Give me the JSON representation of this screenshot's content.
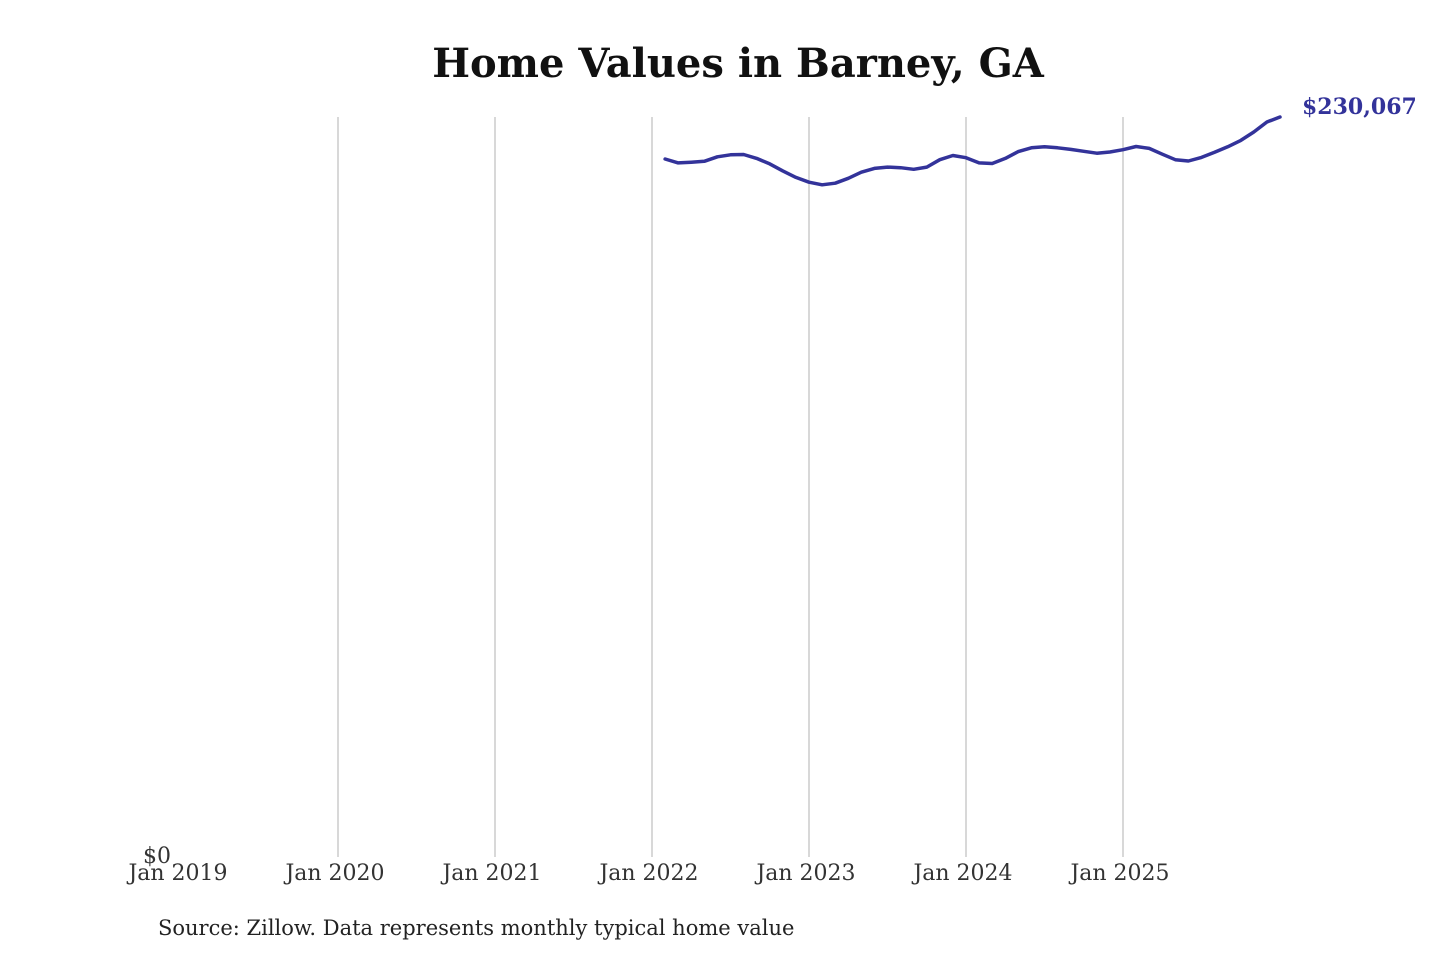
{
  "chart_data": {
    "type": "line",
    "title": "Home Values in Barney, GA",
    "xlabel": "",
    "ylabel": "",
    "x_ticks": [
      "Jan 2019",
      "Jan 2020",
      "Jan 2021",
      "Jan 2022",
      "Jan 2023",
      "Jan 2024",
      "Jan 2025"
    ],
    "y_ticks": [
      "$0"
    ],
    "xlim": [
      "2019-01",
      "2025-12"
    ],
    "ylim": [
      0,
      230067
    ],
    "grid": "vertical",
    "legend": "none",
    "series": [
      {
        "color": "#33339a",
        "points": [
          [
            "2022-02",
            217000
          ],
          [
            "2022-03",
            215800
          ],
          [
            "2022-04",
            216000
          ],
          [
            "2022-05",
            216300
          ],
          [
            "2022-06",
            217700
          ],
          [
            "2022-07",
            218300
          ],
          [
            "2022-08",
            218400
          ],
          [
            "2022-09",
            217200
          ],
          [
            "2022-10",
            215500
          ],
          [
            "2022-11",
            213300
          ],
          [
            "2022-12",
            211300
          ],
          [
            "2023-01",
            209800
          ],
          [
            "2023-02",
            209000
          ],
          [
            "2023-03",
            209500
          ],
          [
            "2023-04",
            211000
          ],
          [
            "2023-05",
            212900
          ],
          [
            "2023-06",
            214100
          ],
          [
            "2023-07",
            214500
          ],
          [
            "2023-08",
            214300
          ],
          [
            "2023-09",
            213800
          ],
          [
            "2023-10",
            214500
          ],
          [
            "2023-11",
            216800
          ],
          [
            "2023-12",
            218100
          ],
          [
            "2024-01",
            217400
          ],
          [
            "2024-02",
            215800
          ],
          [
            "2024-03",
            215600
          ],
          [
            "2024-04",
            217200
          ],
          [
            "2024-05",
            219300
          ],
          [
            "2024-06",
            220500
          ],
          [
            "2024-07",
            220800
          ],
          [
            "2024-08",
            220500
          ],
          [
            "2024-09",
            220000
          ],
          [
            "2024-10",
            219400
          ],
          [
            "2024-11",
            218800
          ],
          [
            "2024-12",
            219200
          ],
          [
            "2025-01",
            219900
          ],
          [
            "2025-02",
            220900
          ],
          [
            "2025-03",
            220300
          ],
          [
            "2025-04",
            218500
          ],
          [
            "2025-05",
            216800
          ],
          [
            "2025-06",
            216400
          ],
          [
            "2025-07",
            217500
          ],
          [
            "2025-08",
            219100
          ],
          [
            "2025-09",
            220800
          ],
          [
            "2025-10",
            222800
          ],
          [
            "2025-11",
            225400
          ],
          [
            "2025-12",
            228500
          ],
          [
            "2026-01",
            230067
          ]
        ],
        "end_label": "$230,067"
      }
    ],
    "source": "Source: Zillow. Data represents monthly typical home value"
  }
}
